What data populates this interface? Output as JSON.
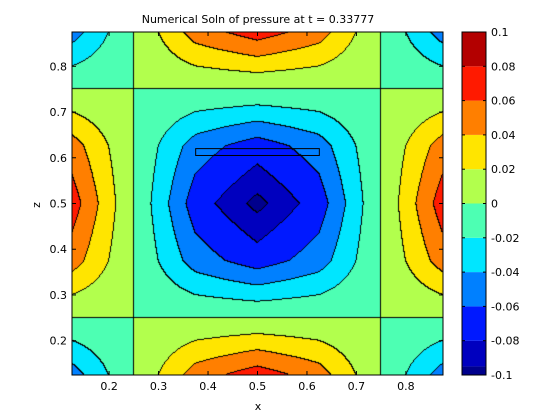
{
  "chart_data": {
    "type": "heatmap",
    "subtype": "filled-contour",
    "title": "Numerical Soln of pressure at t = 0.33777",
    "xlabel": "x",
    "ylabel": "z",
    "xlim": [
      0.125,
      0.875
    ],
    "ylim": [
      0.125,
      0.875
    ],
    "xticks": [
      "0.2",
      "0.3",
      "0.4",
      "0.5",
      "0.6",
      "0.7",
      "0.8"
    ],
    "yticks": [
      "0.2",
      "0.3",
      "0.4",
      "0.5",
      "0.6",
      "0.7",
      "0.8"
    ],
    "colorbar": {
      "range": [
        -0.1,
        0.1
      ],
      "ticks": [
        "-0.1",
        "-0.08",
        "-0.06",
        "-0.04",
        "-0.02",
        "0",
        "0.02",
        "0.04",
        "0.06",
        "0.08",
        "0.1"
      ]
    },
    "contour_levels": [
      -0.095,
      -0.08,
      -0.06,
      -0.04,
      -0.02,
      0,
      0.02,
      0.04,
      0.06,
      0.08
    ],
    "grid_resolution": 0.125,
    "field_model": {
      "form": "p = -0.1 * cos(2*pi*x) * cos(2*pi*z)",
      "center_value": -0.1,
      "side_edge_midpoint_value": 0.1,
      "top_bottom_edge_midpoint_value": 0.1,
      "corner_value": -0.1
    },
    "annotation": {
      "type": "rectangle",
      "x": [
        0.375,
        0.625
      ],
      "z": [
        0.605,
        0.62
      ]
    },
    "colormap": "jet"
  }
}
